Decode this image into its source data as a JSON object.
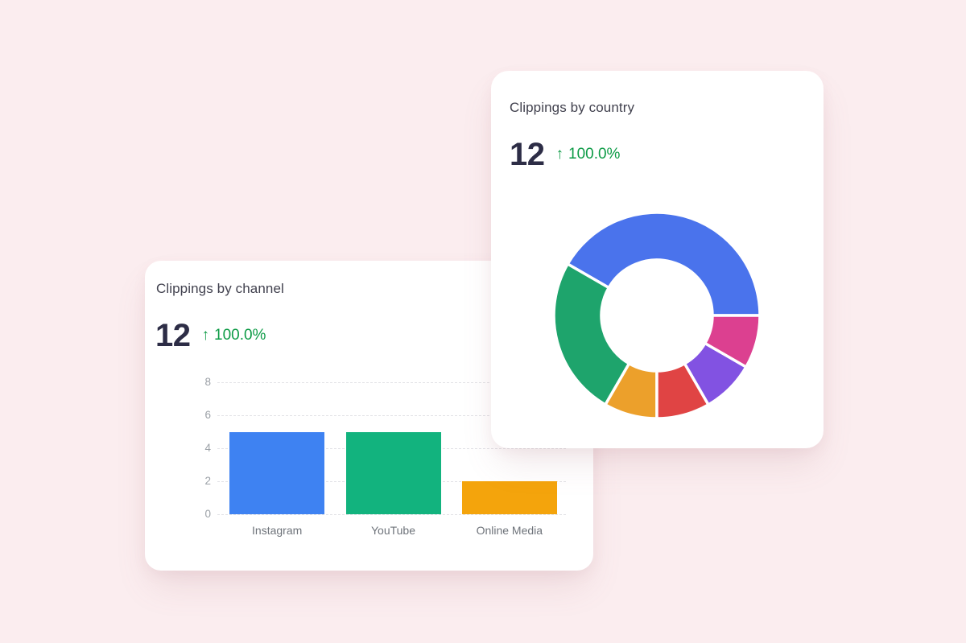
{
  "page": {
    "background": "#FBEDEF"
  },
  "cards": {
    "channel": {
      "title": "Clippings by channel",
      "metric": {
        "value": "12",
        "arrow": "↑",
        "change": "100.0%"
      }
    },
    "country": {
      "title": "Clippings by country",
      "metric": {
        "value": "12",
        "arrow": "↑",
        "change": "100.0%"
      }
    }
  },
  "colors": {
    "title_text": "#41414E",
    "metric_text": "#2D2D46",
    "positive_green": "#0D9B46",
    "axis_label": "#9CA1A7",
    "category_label": "#6E737A",
    "gridline": "#E2E2E6",
    "card_background": "#FFFFFF",
    "page_background": "#FBEDEF"
  },
  "chart_data": [
    {
      "type": "donut",
      "title": "Clippings by country",
      "total": 12,
      "start_angle_deg": 0,
      "direction": "counterclockwise",
      "inner_radius_ratio": 0.54,
      "legend": "none",
      "slices": [
        {
          "name": "slice-1",
          "value": 5,
          "color": "#4A73EC"
        },
        {
          "name": "slice-2",
          "value": 3,
          "color": "#1EA46C"
        },
        {
          "name": "slice-3",
          "value": 1,
          "color": "#ECA02B"
        },
        {
          "name": "slice-4",
          "value": 1,
          "color": "#E04444"
        },
        {
          "name": "slice-5",
          "value": 1,
          "color": "#8252E2"
        },
        {
          "name": "slice-6",
          "value": 1,
          "color": "#DC4090"
        }
      ]
    },
    {
      "type": "bar",
      "title": "Clippings by channel",
      "categories": [
        "Instagram",
        "YouTube",
        "Online Media"
      ],
      "values": [
        5,
        5,
        2
      ],
      "bar_colors": [
        "#3E82F2",
        "#12B37E",
        "#F4A40C"
      ],
      "ylim": [
        0,
        8
      ],
      "yticks": [
        8,
        6,
        4,
        2,
        0
      ],
      "grid": "dashed horizontal",
      "legend": "none"
    }
  ]
}
